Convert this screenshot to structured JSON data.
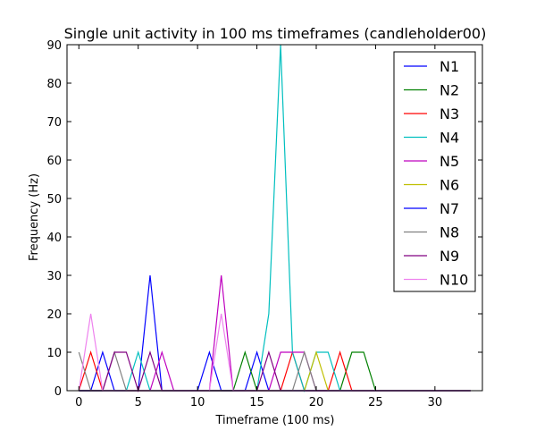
{
  "chart_data": {
    "type": "line",
    "title": "Single unit activity in 100 ms timeframes (candleholder00)",
    "xlabel": "Timeframe (100 ms)",
    "ylabel": "Frequency (Hz)",
    "xlim": [
      -1,
      34
    ],
    "ylim": [
      0,
      90
    ],
    "xticks": [
      0,
      5,
      10,
      15,
      20,
      25,
      30
    ],
    "yticks": [
      0,
      10,
      20,
      30,
      40,
      50,
      60,
      70,
      80,
      90
    ],
    "grid": false,
    "legend_position": "top-right",
    "x": [
      0,
      1,
      2,
      3,
      4,
      5,
      6,
      7,
      8,
      9,
      10,
      11,
      12,
      13,
      14,
      15,
      16,
      17,
      18,
      19,
      20,
      21,
      22,
      23,
      24,
      25,
      26,
      27,
      28,
      29,
      30,
      31,
      32,
      33
    ],
    "series": [
      {
        "name": "N1",
        "color": "#0000ff",
        "values": [
          0,
          0,
          10,
          0,
          0,
          0,
          30,
          0,
          0,
          0,
          0,
          10,
          0,
          0,
          0,
          10,
          0,
          0,
          0,
          0,
          0,
          0,
          0,
          0,
          0,
          0,
          0,
          0,
          0,
          0,
          0,
          0,
          0,
          0
        ]
      },
      {
        "name": "N2",
        "color": "#008000",
        "values": [
          0,
          0,
          0,
          0,
          0,
          0,
          0,
          0,
          0,
          0,
          0,
          0,
          0,
          0,
          10,
          0,
          0,
          0,
          0,
          0,
          0,
          0,
          0,
          10,
          10,
          0,
          0,
          0,
          0,
          0,
          0,
          0,
          0,
          0
        ]
      },
      {
        "name": "N3",
        "color": "#ff0000",
        "values": [
          0,
          10,
          0,
          0,
          0,
          0,
          0,
          0,
          0,
          0,
          0,
          0,
          0,
          0,
          0,
          0,
          0,
          0,
          10,
          0,
          0,
          0,
          10,
          0,
          0,
          0,
          0,
          0,
          0,
          0,
          0,
          0,
          0,
          0
        ]
      },
      {
        "name": "N4",
        "color": "#00bfbf",
        "values": [
          0,
          0,
          0,
          0,
          0,
          10,
          0,
          0,
          0,
          0,
          0,
          0,
          0,
          0,
          0,
          0,
          20,
          90,
          10,
          0,
          10,
          10,
          0,
          0,
          0,
          0,
          0,
          0,
          0,
          0,
          0,
          0,
          0,
          0
        ]
      },
      {
        "name": "N5",
        "color": "#bf00bf",
        "values": [
          0,
          0,
          0,
          0,
          0,
          0,
          0,
          10,
          0,
          0,
          0,
          0,
          30,
          0,
          0,
          0,
          0,
          10,
          10,
          10,
          0,
          0,
          0,
          0,
          0,
          0,
          0,
          0,
          0,
          0,
          0,
          0,
          0,
          0
        ]
      },
      {
        "name": "N6",
        "color": "#bfbf00",
        "values": [
          0,
          0,
          0,
          0,
          0,
          0,
          0,
          0,
          0,
          0,
          0,
          0,
          0,
          0,
          0,
          0,
          0,
          0,
          0,
          0,
          10,
          0,
          0,
          0,
          0,
          0,
          0,
          0,
          0,
          0,
          0,
          0,
          0,
          0
        ]
      },
      {
        "name": "N7",
        "color": "#0000ff",
        "values": [
          0,
          0,
          0,
          0,
          0,
          0,
          0,
          0,
          0,
          0,
          0,
          0,
          0,
          0,
          0,
          0,
          0,
          0,
          0,
          0,
          0,
          0,
          0,
          0,
          0,
          0,
          0,
          0,
          0,
          0,
          0,
          0,
          0,
          0
        ]
      },
      {
        "name": "N8",
        "color": "#808080",
        "values": [
          10,
          0,
          0,
          10,
          0,
          0,
          0,
          0,
          0,
          0,
          0,
          0,
          0,
          0,
          0,
          0,
          0,
          0,
          0,
          10,
          0,
          0,
          0,
          0,
          0,
          0,
          0,
          0,
          0,
          0,
          0,
          0,
          0,
          0
        ]
      },
      {
        "name": "N9",
        "color": "#800080",
        "values": [
          0,
          0,
          0,
          10,
          10,
          0,
          10,
          0,
          0,
          0,
          0,
          0,
          0,
          0,
          0,
          0,
          10,
          0,
          0,
          0,
          0,
          0,
          0,
          0,
          0,
          0,
          0,
          0,
          0,
          0,
          0,
          0,
          0,
          0
        ]
      },
      {
        "name": "N10",
        "color": "#ee82ee",
        "values": [
          0,
          20,
          0,
          0,
          0,
          0,
          0,
          0,
          0,
          0,
          0,
          0,
          20,
          0,
          0,
          0,
          0,
          0,
          0,
          0,
          0,
          0,
          0,
          0,
          0,
          0,
          0,
          0,
          0,
          0,
          0,
          0,
          0,
          0
        ]
      }
    ]
  }
}
